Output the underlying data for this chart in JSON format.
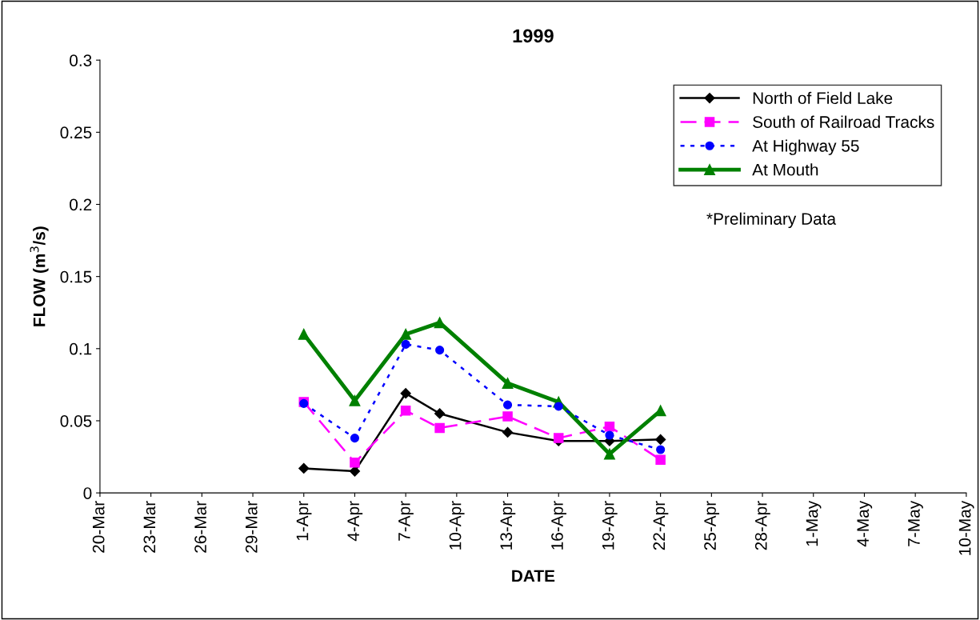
{
  "chart_data": {
    "type": "line",
    "title": "1999",
    "xlabel": "DATE",
    "ylabel": "FLOW (m$^{3}$/s)",
    "x": [
      "1999-04-01",
      "1999-04-04",
      "1999-04-07",
      "1999-04-09",
      "1999-04-13",
      "1999-04-16",
      "1999-04-19",
      "1999-04-22"
    ],
    "series": [
      {
        "name": "North of Field Lake",
        "color": "#000000",
        "marker": "diamond",
        "line_style": "solid",
        "values": [
          0.017,
          0.015,
          0.069,
          0.055,
          0.042,
          0.036,
          0.036,
          0.037
        ]
      },
      {
        "name": "South of Railroad Tracks",
        "color": "#ff00ff",
        "marker": "square",
        "line_style": "dashed",
        "values": [
          0.063,
          0.021,
          0.057,
          0.045,
          0.053,
          0.038,
          0.046,
          0.023
        ]
      },
      {
        "name": "At Highway 55",
        "color": "#0000ff",
        "marker": "circle",
        "line_style": "dotted",
        "values": [
          0.062,
          0.038,
          0.103,
          0.099,
          0.061,
          0.06,
          0.04,
          0.03
        ]
      },
      {
        "name": "At Mouth",
        "color": "#008000",
        "marker": "triangle",
        "line_style": "solid",
        "values": [
          0.11,
          0.064,
          0.11,
          0.118,
          0.076,
          0.063,
          0.027,
          0.057
        ]
      }
    ],
    "xlim": [
      "1999-03-20",
      "1999-05-10"
    ],
    "xticks": [
      {
        "value": "1999-03-20",
        "label": "20-Mar"
      },
      {
        "value": "1999-03-23",
        "label": "23-Mar"
      },
      {
        "value": "1999-03-26",
        "label": "26-Mar"
      },
      {
        "value": "1999-03-29",
        "label": "29-Mar"
      },
      {
        "value": "1999-04-01",
        "label": "1-Apr"
      },
      {
        "value": "1999-04-04",
        "label": "4-Apr"
      },
      {
        "value": "1999-04-07",
        "label": "7-Apr"
      },
      {
        "value": "1999-04-10",
        "label": "10-Apr"
      },
      {
        "value": "1999-04-13",
        "label": "13-Apr"
      },
      {
        "value": "1999-04-16",
        "label": "16-Apr"
      },
      {
        "value": "1999-04-19",
        "label": "19-Apr"
      },
      {
        "value": "1999-04-22",
        "label": "22-Apr"
      },
      {
        "value": "1999-04-25",
        "label": "25-Apr"
      },
      {
        "value": "1999-04-28",
        "label": "28-Apr"
      },
      {
        "value": "1999-05-01",
        "label": "1-May"
      },
      {
        "value": "1999-05-04",
        "label": "4-May"
      },
      {
        "value": "1999-05-07",
        "label": "7-May"
      },
      {
        "value": "1999-05-10",
        "label": "10-May"
      }
    ],
    "ylim": [
      0,
      0.3
    ],
    "yticks": [
      0,
      0.05,
      0.1,
      0.15,
      0.2,
      0.25,
      0.3
    ],
    "annotations": [
      "*Preliminary Data"
    ],
    "legend": "top right",
    "grid": false
  }
}
